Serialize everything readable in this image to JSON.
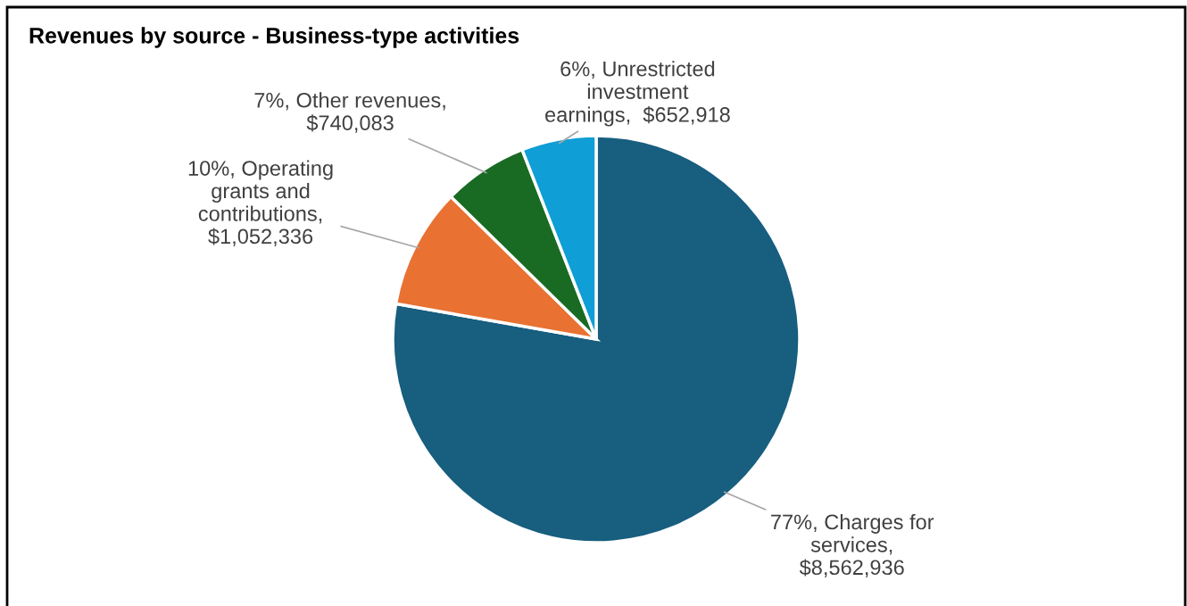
{
  "chart_data": {
    "type": "pie",
    "title": "Revenues by source - Business-type activities",
    "categories": [
      "77%, Charges for\nservices,\n$8,562,936",
      "10%, Operating\ngrants and\ncontributions,\n$1,052,336",
      "7%, Other revenues,\n$740,083",
      "6%, Unrestricted\ninvestment\nearnings,  $652,918"
    ],
    "values": [
      8562936,
      1052336,
      740083,
      652918
    ],
    "colors": [
      "#175e7f",
      "#e97132",
      "#196b24",
      "#0f9ed5"
    ],
    "legend": false
  }
}
